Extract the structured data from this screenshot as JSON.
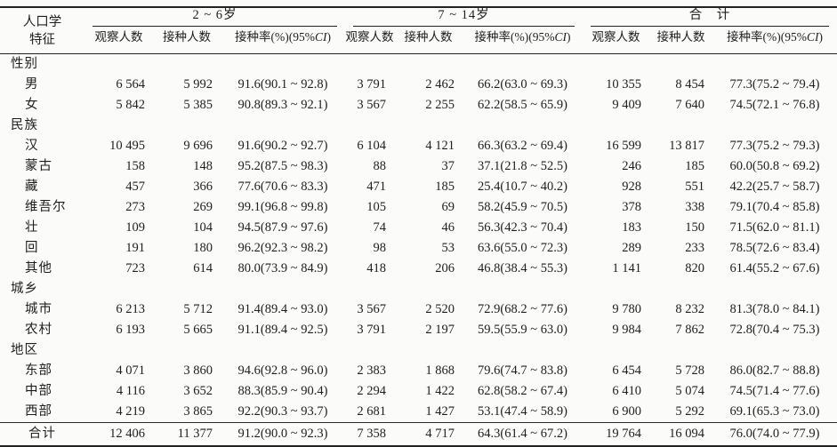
{
  "table": {
    "col1_header_line1": "人口学",
    "col1_header_line2": "特征",
    "groups": [
      {
        "label": "2 ~ 6岁"
      },
      {
        "label": "7 ~ 14岁"
      },
      {
        "label": "合　计"
      }
    ],
    "subheaders": {
      "obs": "观察人数",
      "vac": "接种人数",
      "rate_prefix": "接种率(%)(95%",
      "rate_italic": "CI",
      "rate_suffix": ")"
    },
    "rows": [
      {
        "type": "section",
        "label": "性别",
        "cells": [
          "",
          "",
          "",
          "",
          "",
          "",
          "",
          "",
          ""
        ]
      },
      {
        "type": "item",
        "label": "男",
        "cells": [
          "6 564",
          "5 992",
          "91.6(90.1 ~ 92.8)",
          "3 791",
          "2 462",
          "66.2(63.0 ~ 69.3)",
          "10 355",
          "8 454",
          "77.3(75.2 ~ 79.4)"
        ]
      },
      {
        "type": "item",
        "label": "女",
        "cells": [
          "5 842",
          "5 385",
          "90.8(89.3 ~ 92.1)",
          "3 567",
          "2 255",
          "62.2(58.5 ~ 65.9)",
          "9 409",
          "7 640",
          "74.5(72.1 ~ 76.8)"
        ]
      },
      {
        "type": "section",
        "label": "民族",
        "cells": [
          "",
          "",
          "",
          "",
          "",
          "",
          "",
          "",
          ""
        ]
      },
      {
        "type": "item",
        "label": "汉",
        "cells": [
          "10 495",
          "9 696",
          "91.6(90.2 ~ 92.7)",
          "6 104",
          "4 121",
          "66.3(63.2 ~ 69.4)",
          "16 599",
          "13 817",
          "77.3(75.2 ~ 79.3)"
        ]
      },
      {
        "type": "item",
        "label": "蒙古",
        "cells": [
          "158",
          "148",
          "95.2(87.5 ~ 98.3)",
          "88",
          "37",
          "37.1(21.8 ~ 52.5)",
          "246",
          "185",
          "60.0(50.8 ~ 69.2)"
        ]
      },
      {
        "type": "item",
        "label": "藏",
        "cells": [
          "457",
          "366",
          "77.6(70.6 ~ 83.3)",
          "471",
          "185",
          "25.4(10.7 ~ 40.2)",
          "928",
          "551",
          "42.2(25.7 ~ 58.7)"
        ]
      },
      {
        "type": "item",
        "label": "维吾尔",
        "cells": [
          "273",
          "269",
          "99.1(96.8 ~ 99.8)",
          "105",
          "69",
          "58.2(45.9 ~ 70.5)",
          "378",
          "338",
          "79.1(70.4 ~ 85.8)"
        ]
      },
      {
        "type": "item",
        "label": "壮",
        "cells": [
          "109",
          "104",
          "94.5(87.9 ~ 97.6)",
          "74",
          "46",
          "56.3(42.3 ~ 70.4)",
          "183",
          "150",
          "71.5(62.0 ~ 81.1)"
        ]
      },
      {
        "type": "item",
        "label": "回",
        "cells": [
          "191",
          "180",
          "96.2(92.3 ~ 98.2)",
          "98",
          "53",
          "63.6(55.0 ~ 72.3)",
          "289",
          "233",
          "78.5(72.6 ~ 83.4)"
        ]
      },
      {
        "type": "item",
        "label": "其他",
        "cells": [
          "723",
          "614",
          "80.0(73.9 ~ 84.9)",
          "418",
          "206",
          "46.8(38.4 ~ 55.3)",
          "1 141",
          "820",
          "61.4(55.2 ~ 67.6)"
        ]
      },
      {
        "type": "section",
        "label": "城乡",
        "cells": [
          "",
          "",
          "",
          "",
          "",
          "",
          "",
          "",
          ""
        ]
      },
      {
        "type": "item",
        "label": "城市",
        "cells": [
          "6 213",
          "5 712",
          "91.4(89.4 ~ 93.0)",
          "3 567",
          "2 520",
          "72.9(68.2 ~ 77.6)",
          "9 780",
          "8 232",
          "81.3(78.0 ~ 84.1)"
        ]
      },
      {
        "type": "item",
        "label": "农村",
        "cells": [
          "6 193",
          "5 665",
          "91.1(89.4 ~ 92.5)",
          "3 791",
          "2 197",
          "59.5(55.9 ~ 63.0)",
          "9 984",
          "7 862",
          "72.8(70.4 ~ 75.3)"
        ]
      },
      {
        "type": "section",
        "label": "地区",
        "cells": [
          "",
          "",
          "",
          "",
          "",
          "",
          "",
          "",
          ""
        ]
      },
      {
        "type": "item",
        "label": "东部",
        "cells": [
          "4 071",
          "3 860",
          "94.6(92.8 ~ 96.0)",
          "2 383",
          "1 868",
          "79.6(74.7 ~ 83.8)",
          "6 454",
          "5 728",
          "86.0(82.7 ~ 88.8)"
        ]
      },
      {
        "type": "item",
        "label": "中部",
        "cells": [
          "4 116",
          "3 652",
          "88.3(85.9 ~ 90.4)",
          "2 294",
          "1 422",
          "62.8(58.2 ~ 67.4)",
          "6 410",
          "5 074",
          "74.5(71.4 ~ 77.6)"
        ]
      },
      {
        "type": "item",
        "label": "西部",
        "cells": [
          "4 219",
          "3 865",
          "92.2(90.3 ~ 93.7)",
          "2 681",
          "1 427",
          "53.1(47.4 ~ 58.9)",
          "6 900",
          "5 292",
          "69.1(65.3 ~ 73.0)"
        ]
      },
      {
        "type": "total",
        "label": "合计",
        "cells": [
          "12 406",
          "11 377",
          "91.2(90.0 ~ 92.3)",
          "7 358",
          "4 717",
          "64.3(61.4 ~ 67.2)",
          "19 764",
          "16 094",
          "76.0(74.0 ~ 77.9)"
        ]
      }
    ]
  }
}
